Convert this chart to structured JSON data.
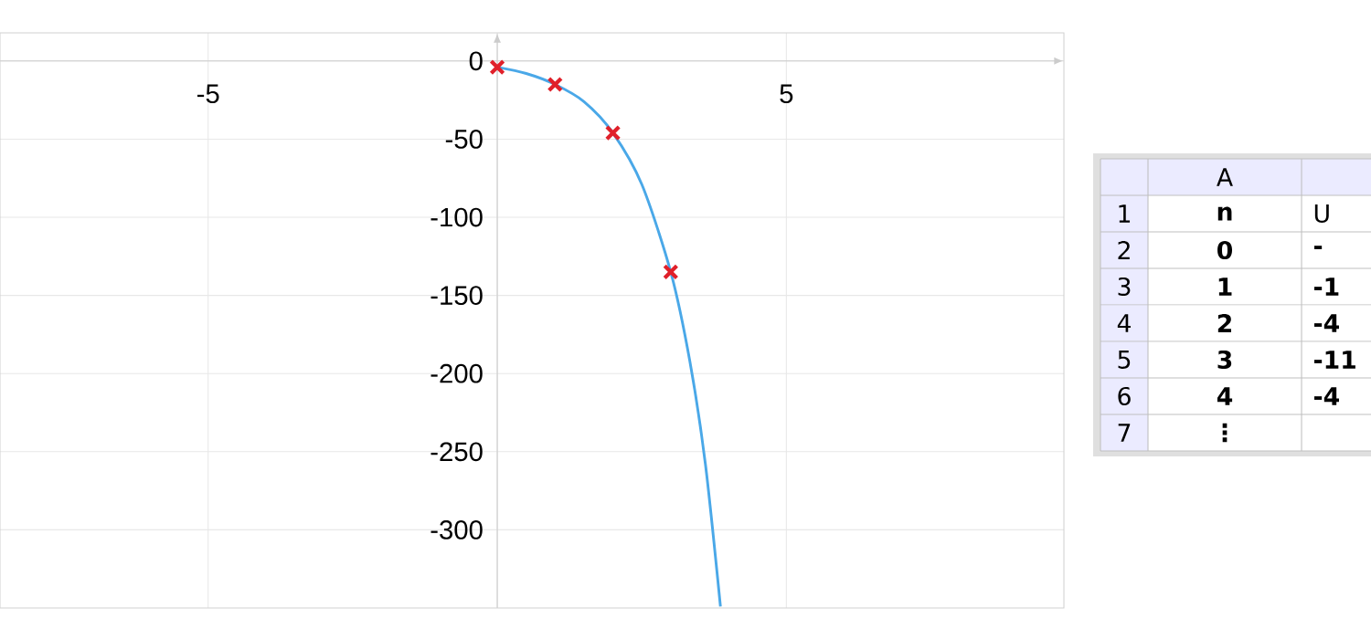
{
  "chart_data": {
    "type": "line",
    "xlim": [
      -8.6,
      9.8
    ],
    "ylim": [
      -350,
      18
    ],
    "xticks": [
      -5,
      {
        "value": 0,
        "label": null
      },
      5
    ],
    "yticks": [
      0,
      -50,
      -100,
      -150,
      -200,
      -250,
      -300
    ],
    "grid": true,
    "series": [
      {
        "color": "#4aa8e8",
        "marker": "none",
        "x": [
          0,
          0.5,
          1,
          1.5,
          2,
          2.5,
          3,
          3.33,
          3.6,
          3.86
        ],
        "values": [
          -4,
          -8,
          -15,
          -26,
          -46,
          -79,
          -135,
          -192,
          -258,
          -349
        ]
      },
      {
        "type": "scatter",
        "color": "#e0202a",
        "marker": "cross",
        "x": [
          0,
          1,
          2,
          3
        ],
        "values": [
          -4,
          -15,
          -46,
          -135
        ]
      }
    ],
    "annotations": [
      "A",
      "1",
      "n",
      "U",
      "2",
      "0",
      "-",
      "3",
      "1",
      "-1",
      "4",
      "2",
      "-4",
      "5",
      "3",
      "-11",
      "6",
      "4",
      "-4",
      "7",
      "⋮"
    ]
  }
}
